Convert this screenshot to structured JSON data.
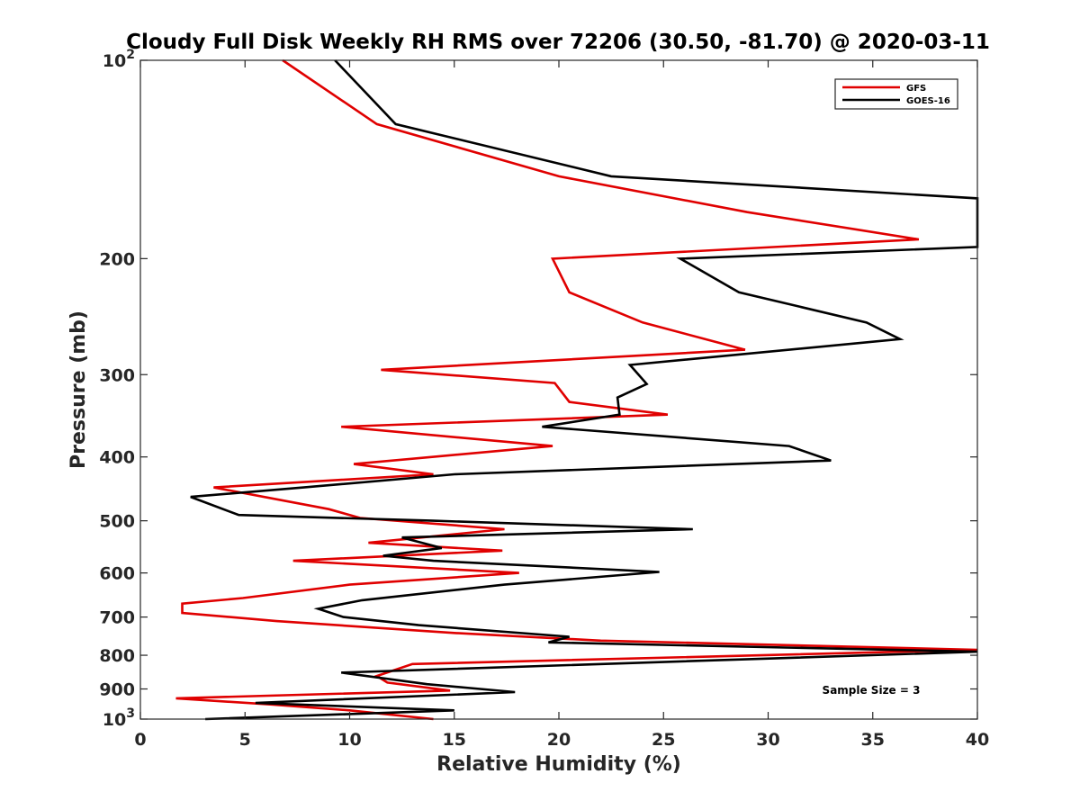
{
  "chart_data": {
    "type": "line",
    "title": "Cloudy Full Disk Weekly RH RMS over 72206 (30.50, -81.70) @ 2020-03-11",
    "xlabel": "Relative Humidity (%)",
    "ylabel": "Pressure (mb)",
    "xlim": [
      0,
      40
    ],
    "ylim": [
      100,
      1000
    ],
    "yscale": "log",
    "yreverse": true,
    "xticks": [
      0,
      5,
      10,
      15,
      20,
      25,
      30,
      35,
      40
    ],
    "xtick_labels": [
      "0",
      "5",
      "10",
      "15",
      "20",
      "25",
      "30",
      "35",
      "40"
    ],
    "yticks": [
      {
        "value": 100,
        "base": "10",
        "exp": "2"
      },
      {
        "value": 200,
        "base": "200",
        "exp": ""
      },
      {
        "value": 300,
        "base": "300",
        "exp": ""
      },
      {
        "value": 400,
        "base": "400",
        "exp": ""
      },
      {
        "value": 500,
        "base": "500",
        "exp": ""
      },
      {
        "value": 600,
        "base": "600",
        "exp": ""
      },
      {
        "value": 700,
        "base": "700",
        "exp": ""
      },
      {
        "value": 800,
        "base": "800",
        "exp": ""
      },
      {
        "value": 900,
        "base": "900",
        "exp": ""
      },
      {
        "value": 1000,
        "base": "10",
        "exp": "3"
      }
    ],
    "grid": false,
    "legend_position": "top-right",
    "annotation": "Sample Size = 3",
    "series": [
      {
        "name": "GFS",
        "color": "#e00000",
        "points": [
          [
            6.8,
            100
          ],
          [
            11.3,
            125
          ],
          [
            20.0,
            150
          ],
          [
            29.0,
            170
          ],
          [
            37.2,
            187
          ],
          [
            19.7,
            200
          ],
          [
            20.5,
            225
          ],
          [
            24.0,
            250
          ],
          [
            28.9,
            275
          ],
          [
            11.5,
            295
          ],
          [
            19.8,
            309
          ],
          [
            20.5,
            330
          ],
          [
            25.2,
            345
          ],
          [
            9.6,
            360
          ],
          [
            19.7,
            385
          ],
          [
            10.2,
            410
          ],
          [
            14.0,
            425
          ],
          [
            3.5,
            445
          ],
          [
            9.0,
            480
          ],
          [
            10.5,
            495
          ],
          [
            17.4,
            515
          ],
          [
            10.9,
            540
          ],
          [
            17.3,
            555
          ],
          [
            7.3,
            575
          ],
          [
            18.1,
            600
          ],
          [
            10.0,
            625
          ],
          [
            4.9,
            655
          ],
          [
            2.0,
            668
          ],
          [
            2.0,
            690
          ],
          [
            6.5,
            710
          ],
          [
            15.0,
            740
          ],
          [
            22.0,
            760
          ],
          [
            40.0,
            785
          ],
          [
            13.0,
            825
          ],
          [
            11.3,
            860
          ],
          [
            11.8,
            880
          ],
          [
            14.8,
            905
          ],
          [
            1.7,
            930
          ],
          [
            6.2,
            950
          ],
          [
            10.0,
            970
          ],
          [
            14.0,
            1000
          ]
        ]
      },
      {
        "name": "GOES-16",
        "color": "#000000",
        "points": [
          [
            9.3,
            100
          ],
          [
            12.2,
            125
          ],
          [
            22.5,
            150
          ],
          [
            40.0,
            162
          ],
          [
            40.0,
            192
          ],
          [
            25.8,
            200
          ],
          [
            28.6,
            225
          ],
          [
            34.7,
            250
          ],
          [
            36.3,
            265
          ],
          [
            23.4,
            290
          ],
          [
            24.2,
            310
          ],
          [
            22.8,
            325
          ],
          [
            22.9,
            345
          ],
          [
            19.2,
            360
          ],
          [
            31.0,
            385
          ],
          [
            33.0,
            405
          ],
          [
            15.0,
            425
          ],
          [
            7.8,
            445
          ],
          [
            2.4,
            460
          ],
          [
            4.7,
            490
          ],
          [
            14.0,
            500
          ],
          [
            26.4,
            515
          ],
          [
            12.5,
            530
          ],
          [
            14.4,
            550
          ],
          [
            11.6,
            565
          ],
          [
            14.0,
            575
          ],
          [
            24.8,
            598
          ],
          [
            17.4,
            625
          ],
          [
            10.6,
            660
          ],
          [
            8.5,
            680
          ],
          [
            9.7,
            700
          ],
          [
            13.3,
            720
          ],
          [
            20.5,
            750
          ],
          [
            19.5,
            765
          ],
          [
            40.0,
            790
          ],
          [
            9.6,
            850
          ],
          [
            13.7,
            885
          ],
          [
            17.9,
            910
          ],
          [
            5.5,
            945
          ],
          [
            15.0,
            970
          ],
          [
            3.1,
            1000
          ]
        ]
      }
    ]
  }
}
